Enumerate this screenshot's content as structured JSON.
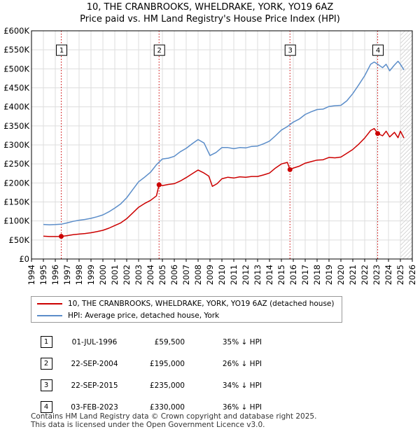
{
  "title_line1": "10, THE CRANBROOKS, WHELDRAKE, YORK, YO19 6AZ",
  "title_line2": "Price paid vs. HM Land Registry's House Price Index (HPI)",
  "colors": {
    "property": "#cc0000",
    "hpi": "#5b8dc9",
    "marker_line": "#cc0000",
    "grid": "#dddddd"
  },
  "chart_data": {
    "type": "line",
    "title": "10, THE CRANBROOKS, WHELDRAKE, YORK, YO19 6AZ — Price paid vs. HM Land Registry's House Price Index (HPI)",
    "xlabel": "",
    "ylabel": "",
    "xlim": [
      1994,
      2026
    ],
    "ylim": [
      0,
      600000
    ],
    "x_ticks": [
      "1994",
      "1995",
      "1996",
      "1997",
      "1998",
      "1999",
      "2000",
      "2001",
      "2002",
      "2003",
      "2004",
      "2005",
      "2006",
      "2007",
      "2008",
      "2009",
      "2010",
      "2011",
      "2012",
      "2013",
      "2014",
      "2015",
      "2016",
      "2017",
      "2018",
      "2019",
      "2020",
      "2021",
      "2022",
      "2023",
      "2024",
      "2025",
      "2026"
    ],
    "y_ticks": [
      {
        "value": 0,
        "label": "£0"
      },
      {
        "value": 50000,
        "label": "£50K"
      },
      {
        "value": 100000,
        "label": "£100K"
      },
      {
        "value": 150000,
        "label": "£150K"
      },
      {
        "value": 200000,
        "label": "£200K"
      },
      {
        "value": 250000,
        "label": "£250K"
      },
      {
        "value": 300000,
        "label": "£300K"
      },
      {
        "value": 350000,
        "label": "£350K"
      },
      {
        "value": 400000,
        "label": "£400K"
      },
      {
        "value": 450000,
        "label": "£450K"
      },
      {
        "value": 500000,
        "label": "£500K"
      },
      {
        "value": 550000,
        "label": "£550K"
      },
      {
        "value": 600000,
        "label": "£600K"
      }
    ],
    "series": [
      {
        "name": "10, THE CRANBROOKS, WHELDRAKE, YORK, YO19 6AZ (detached house)",
        "color": "#cc0000",
        "points": [
          [
            1995.0,
            60000
          ],
          [
            1995.5,
            59000
          ],
          [
            1996.0,
            59000
          ],
          [
            1996.5,
            59500
          ],
          [
            1997.0,
            61500
          ],
          [
            1997.5,
            64000
          ],
          [
            1998.0,
            65500
          ],
          [
            1998.5,
            67000
          ],
          [
            1999.0,
            69000
          ],
          [
            1999.5,
            72000
          ],
          [
            2000.0,
            75500
          ],
          [
            2000.5,
            81000
          ],
          [
            2001.0,
            88000
          ],
          [
            2001.5,
            95000
          ],
          [
            2002.0,
            106000
          ],
          [
            2002.5,
            121000
          ],
          [
            2003.0,
            136000
          ],
          [
            2003.5,
            146000
          ],
          [
            2004.0,
            154000
          ],
          [
            2004.5,
            166000
          ],
          [
            2004.72,
            195000
          ],
          [
            2005.0,
            193000
          ],
          [
            2005.5,
            196000
          ],
          [
            2006.0,
            198000
          ],
          [
            2006.5,
            205000
          ],
          [
            2007.0,
            214000
          ],
          [
            2007.5,
            224000
          ],
          [
            2008.0,
            234000
          ],
          [
            2008.5,
            226000
          ],
          [
            2008.9,
            218000
          ],
          [
            2009.2,
            191000
          ],
          [
            2009.6,
            198000
          ],
          [
            2010.0,
            211000
          ],
          [
            2010.5,
            215000
          ],
          [
            2011.0,
            213000
          ],
          [
            2011.5,
            216000
          ],
          [
            2012.0,
            215000
          ],
          [
            2012.5,
            217000
          ],
          [
            2013.0,
            217000
          ],
          [
            2013.5,
            221000
          ],
          [
            2014.0,
            226000
          ],
          [
            2014.5,
            239000
          ],
          [
            2015.0,
            250000
          ],
          [
            2015.5,
            254000
          ],
          [
            2015.72,
            235000
          ],
          [
            2016.0,
            239000
          ],
          [
            2016.5,
            244000
          ],
          [
            2017.0,
            252000
          ],
          [
            2017.5,
            256000
          ],
          [
            2018.0,
            260000
          ],
          [
            2018.5,
            261000
          ],
          [
            2019.0,
            267000
          ],
          [
            2019.5,
            266000
          ],
          [
            2020.0,
            268000
          ],
          [
            2020.5,
            278000
          ],
          [
            2021.0,
            288000
          ],
          [
            2021.5,
            302000
          ],
          [
            2022.0,
            318000
          ],
          [
            2022.5,
            338000
          ],
          [
            2022.8,
            343000
          ],
          [
            2023.09,
            330000
          ],
          [
            2023.5,
            324000
          ],
          [
            2023.8,
            336000
          ],
          [
            2024.1,
            321000
          ],
          [
            2024.5,
            333000
          ],
          [
            2024.8,
            319000
          ],
          [
            2025.0,
            336000
          ],
          [
            2025.3,
            318000
          ]
        ]
      },
      {
        "name": "HPI: Average price, detached house, York",
        "color": "#5b8dc9",
        "points": [
          [
            1995.0,
            91000
          ],
          [
            1995.5,
            90000
          ],
          [
            1996.0,
            90500
          ],
          [
            1996.5,
            91500
          ],
          [
            1997.0,
            95000
          ],
          [
            1997.5,
            99000
          ],
          [
            1998.0,
            102000
          ],
          [
            1998.5,
            104000
          ],
          [
            1999.0,
            107000
          ],
          [
            1999.5,
            111000
          ],
          [
            2000.0,
            116000
          ],
          [
            2000.5,
            124000
          ],
          [
            2001.0,
            134000
          ],
          [
            2001.5,
            145000
          ],
          [
            2002.0,
            161000
          ],
          [
            2002.5,
            182000
          ],
          [
            2003.0,
            203000
          ],
          [
            2003.5,
            215000
          ],
          [
            2004.0,
            228000
          ],
          [
            2004.5,
            248000
          ],
          [
            2005.0,
            263000
          ],
          [
            2005.5,
            265000
          ],
          [
            2006.0,
            270000
          ],
          [
            2006.5,
            282000
          ],
          [
            2007.0,
            291000
          ],
          [
            2007.5,
            303000
          ],
          [
            2008.0,
            314000
          ],
          [
            2008.5,
            305000
          ],
          [
            2009.0,
            272000
          ],
          [
            2009.5,
            280000
          ],
          [
            2010.0,
            293000
          ],
          [
            2010.5,
            293000
          ],
          [
            2011.0,
            290000
          ],
          [
            2011.5,
            293000
          ],
          [
            2012.0,
            292000
          ],
          [
            2012.5,
            296000
          ],
          [
            2013.0,
            297000
          ],
          [
            2013.5,
            303000
          ],
          [
            2014.0,
            310000
          ],
          [
            2014.5,
            324000
          ],
          [
            2015.0,
            339000
          ],
          [
            2015.5,
            348000
          ],
          [
            2016.0,
            360000
          ],
          [
            2016.5,
            368000
          ],
          [
            2017.0,
            380000
          ],
          [
            2017.5,
            387000
          ],
          [
            2018.0,
            393000
          ],
          [
            2018.5,
            394000
          ],
          [
            2019.0,
            401000
          ],
          [
            2019.5,
            403000
          ],
          [
            2020.0,
            404000
          ],
          [
            2020.5,
            416000
          ],
          [
            2021.0,
            435000
          ],
          [
            2021.5,
            458000
          ],
          [
            2022.0,
            482000
          ],
          [
            2022.5,
            512000
          ],
          [
            2022.8,
            518000
          ],
          [
            2023.1,
            512000
          ],
          [
            2023.5,
            503000
          ],
          [
            2023.8,
            512000
          ],
          [
            2024.1,
            495000
          ],
          [
            2024.5,
            510000
          ],
          [
            2024.8,
            520000
          ],
          [
            2025.0,
            512000
          ],
          [
            2025.3,
            497000
          ]
        ]
      }
    ],
    "sales": [
      {
        "num": "1",
        "x": 1996.5,
        "price": 59500
      },
      {
        "num": "2",
        "x": 2004.72,
        "price": 195000
      },
      {
        "num": "3",
        "x": 2015.72,
        "price": 235000
      },
      {
        "num": "4",
        "x": 2023.09,
        "price": 330000
      }
    ],
    "label_box_value": 550000,
    "hatch_from": 2025.0
  },
  "legend": {
    "property": "10, THE CRANBROOKS, WHELDRAKE, YORK, YO19 6AZ (detached house)",
    "hpi": "HPI: Average price, detached house, York"
  },
  "table": [
    {
      "num": "1",
      "date": "01-JUL-1996",
      "price": "£59,500",
      "hpi": "35% ↓ HPI"
    },
    {
      "num": "2",
      "date": "22-SEP-2004",
      "price": "£195,000",
      "hpi": "26% ↓ HPI"
    },
    {
      "num": "3",
      "date": "22-SEP-2015",
      "price": "£235,000",
      "hpi": "34% ↓ HPI"
    },
    {
      "num": "4",
      "date": "03-FEB-2023",
      "price": "£330,000",
      "hpi": "36% ↓ HPI"
    }
  ],
  "footer": {
    "line1": "Contains HM Land Registry data © Crown copyright and database right 2025.",
    "line2": "This data is licensed under the Open Government Licence v3.0."
  }
}
